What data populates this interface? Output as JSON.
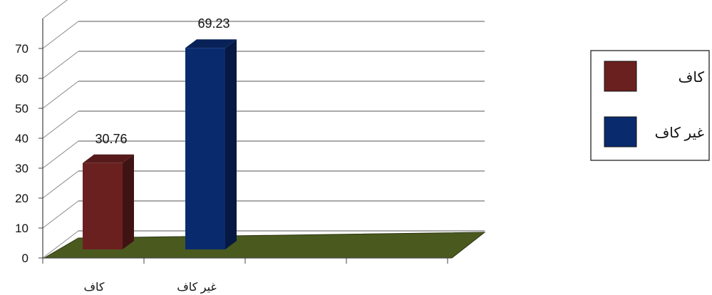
{
  "chart_data": {
    "type": "bar",
    "categories": [
      "كاف",
      "غير كاف"
    ],
    "series": [
      {
        "name": "كاف",
        "values": [
          30.76,
          null
        ],
        "color": "#6B2020"
      },
      {
        "name": "غير كاف",
        "values": [
          null,
          69.23
        ],
        "color": "#0A2A6E"
      }
    ],
    "data_labels": [
      "30.76",
      "69.23"
    ],
    "ylim": [
      0,
      70
    ],
    "yticks": [
      0,
      10,
      20,
      30,
      40,
      50,
      60,
      70
    ],
    "grid": true,
    "legend": "right",
    "three_d": true,
    "floor_color": "#4A5A1E",
    "title": "",
    "xlabel": "",
    "ylabel": ""
  }
}
